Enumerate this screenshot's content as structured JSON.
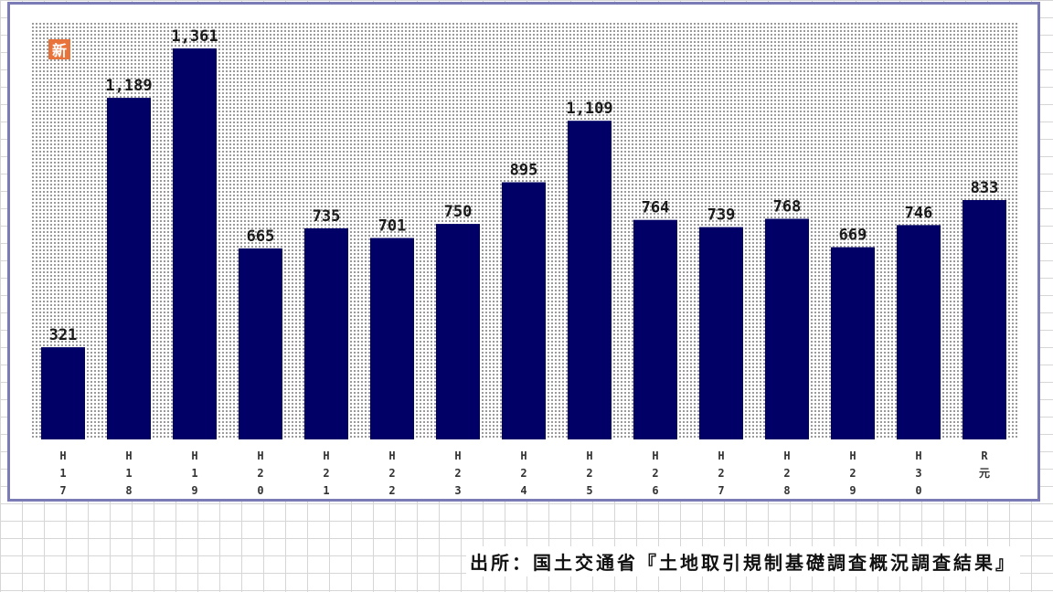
{
  "badge": {
    "text": "新",
    "color": "#e8743b"
  },
  "source_text": "出所：国土交通省『土地取引規制基礎調査概況調査結果』",
  "colors": {
    "bar": "#000066",
    "frame": "#7b7bb5",
    "plot_dots": "#9a9a9a"
  },
  "chart_data": {
    "type": "bar",
    "title": "",
    "xlabel": "",
    "ylabel": "",
    "ylim": [
      0,
      1450
    ],
    "grid": false,
    "categories": [
      "H17",
      "H18",
      "H19",
      "H20",
      "H21",
      "H22",
      "H23",
      "H24",
      "H25",
      "H26",
      "H27",
      "H28",
      "H29",
      "H30",
      "R元"
    ],
    "values": [
      321,
      1189,
      1361,
      665,
      735,
      701,
      750,
      895,
      1109,
      764,
      739,
      768,
      669,
      746,
      833
    ],
    "value_labels": [
      "321",
      "1,189",
      "1,361",
      "665",
      "735",
      "701",
      "750",
      "895",
      "1,109",
      "764",
      "739",
      "768",
      "669",
      "746",
      "833"
    ]
  }
}
